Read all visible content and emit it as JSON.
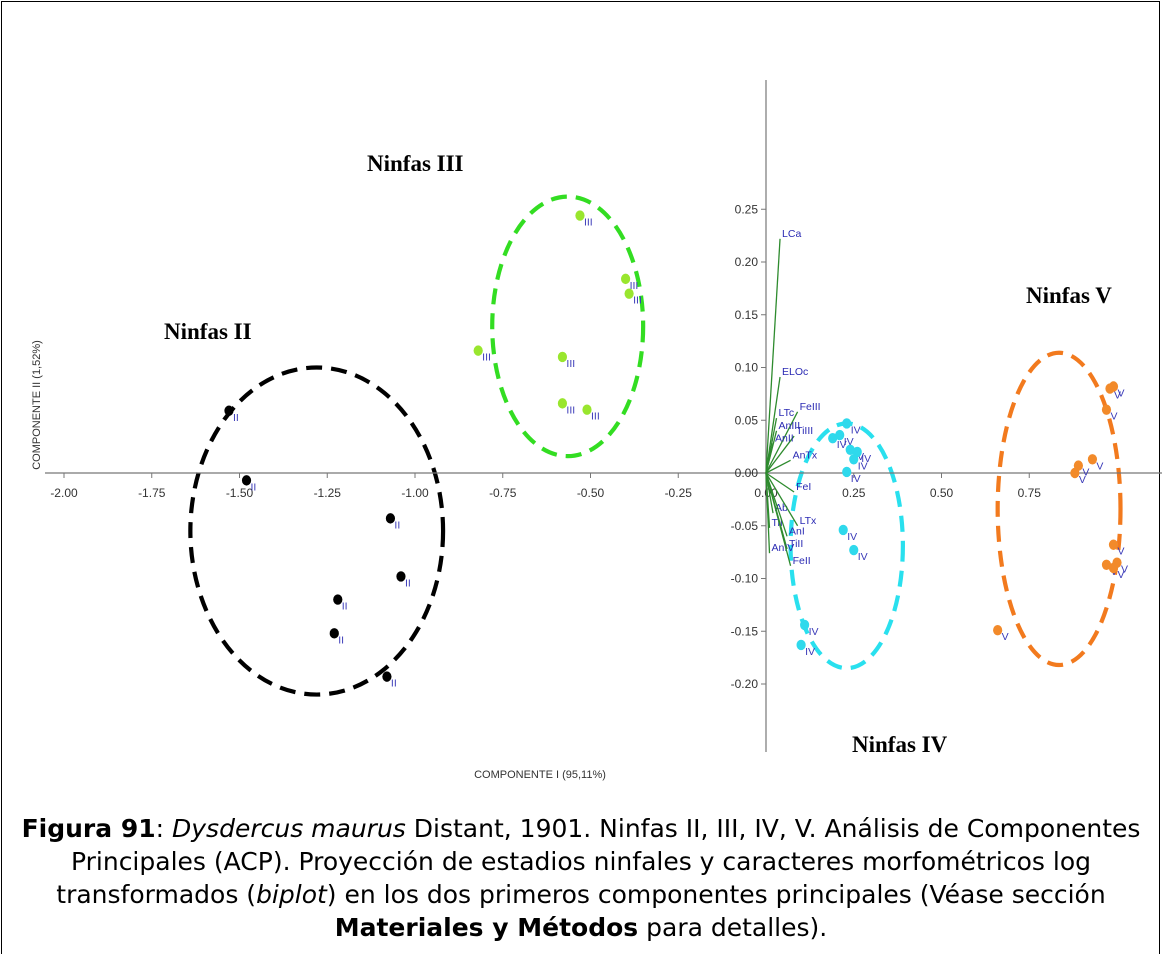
{
  "chart_data": {
    "type": "scatter",
    "xlabel": "COMPONENTE I (95,11%)",
    "ylabel": "COMPONENTE II (1,52%)",
    "xlim": [
      -2.0,
      1.0
    ],
    "ylim": [
      -0.2,
      0.25
    ],
    "x_ticks": [
      -2.0,
      -1.75,
      -1.5,
      -1.25,
      -1.0,
      -0.75,
      -0.5,
      -0.25,
      0.0,
      0.25,
      0.5,
      0.75
    ],
    "x_tick_labels": [
      "-2.00",
      "-1.75",
      "-1.50",
      "-1.25",
      "-1.00",
      "-0.75",
      "-0.50",
      "-0.25",
      "0.00",
      "0.25",
      "0.50",
      "0.75"
    ],
    "y_ticks": [
      0.25,
      0.2,
      0.15,
      0.1,
      0.05,
      0.0,
      -0.05,
      -0.1,
      -0.15,
      -0.2
    ],
    "y_tick_labels": [
      "0.25",
      "0.20",
      "0.15",
      "0.10",
      "0.05",
      "0.00",
      "-0.05",
      "-0.10",
      "-0.15",
      "-0.20"
    ],
    "grid": false,
    "series": [
      {
        "name": "Ninfas II",
        "point_label": "II",
        "color": "#000000",
        "x": [
          -1.53,
          -1.48,
          -1.07,
          -1.04,
          -1.22,
          -1.23,
          -1.08
        ],
        "y": [
          0.059,
          -0.007,
          -0.043,
          -0.098,
          -0.12,
          -0.152,
          -0.193
        ]
      },
      {
        "name": "Ninfas III",
        "point_label": "III",
        "color": "#99e62e",
        "x": [
          -0.53,
          -0.4,
          -0.39,
          -0.82,
          -0.58,
          -0.58,
          -0.51
        ],
        "y": [
          0.244,
          0.184,
          0.17,
          0.116,
          0.11,
          0.066,
          0.06
        ]
      },
      {
        "name": "Ninfas IV",
        "point_label": "IV",
        "color": "#2fd9ec",
        "x": [
          0.23,
          0.21,
          0.19,
          0.24,
          0.26,
          0.25,
          0.23,
          0.22,
          0.25,
          0.11,
          0.1
        ],
        "y": [
          0.047,
          0.036,
          0.033,
          0.022,
          0.02,
          0.013,
          0.001,
          -0.054,
          -0.073,
          -0.144,
          -0.163
        ]
      },
      {
        "name": "Ninfas V",
        "point_label": "V",
        "color": "#f28a2a",
        "x": [
          0.98,
          0.99,
          0.97,
          0.93,
          0.89,
          0.88,
          0.99,
          1.0,
          0.66,
          0.97,
          0.99
        ],
        "y": [
          0.08,
          0.082,
          0.06,
          0.013,
          0.007,
          0.0,
          -0.068,
          -0.085,
          -0.149,
          -0.087,
          -0.09
        ]
      }
    ],
    "vectors": {
      "color": "#2e8b2e",
      "label_color": "#2a2ab3",
      "items": [
        {
          "label": "LCa",
          "x": 0.04,
          "y": 0.222
        },
        {
          "label": "ELOc",
          "x": 0.04,
          "y": 0.091
        },
        {
          "label": "FeIII",
          "x": 0.09,
          "y": 0.058
        },
        {
          "label": "LTc",
          "x": 0.03,
          "y": 0.052
        },
        {
          "label": "AnIII",
          "x": 0.03,
          "y": 0.04
        },
        {
          "label": "TiIII",
          "x": 0.08,
          "y": 0.035
        },
        {
          "label": "AnII",
          "x": 0.02,
          "y": 0.028
        },
        {
          "label": "AnTx",
          "x": 0.07,
          "y": 0.012
        },
        {
          "label": "FeI",
          "x": 0.08,
          "y": -0.018
        },
        {
          "label": "Ab",
          "x": 0.02,
          "y": -0.038
        },
        {
          "label": "TiI",
          "x": 0.01,
          "y": -0.052
        },
        {
          "label": "LTx",
          "x": 0.09,
          "y": -0.05
        },
        {
          "label": "AnI",
          "x": 0.06,
          "y": -0.06
        },
        {
          "label": "TiII",
          "x": 0.06,
          "y": -0.072
        },
        {
          "label": "AnIV",
          "x": 0.01,
          "y": -0.076
        },
        {
          "label": "FeII",
          "x": 0.07,
          "y": -0.088
        }
      ]
    },
    "groups": [
      {
        "name": "Ninfas II",
        "color": "#000000",
        "cx": -1.28,
        "cy": -0.055,
        "rx": 0.36,
        "ry": 0.155
      },
      {
        "name": "Ninfas III",
        "color": "#33dd22",
        "cx": -0.565,
        "cy": 0.139,
        "rx": 0.215,
        "ry": 0.123
      },
      {
        "name": "Ninfas IV",
        "color": "#29e0ee",
        "cx": 0.23,
        "cy": -0.069,
        "rx": 0.16,
        "ry": 0.116
      },
      {
        "name": "Ninfas V",
        "color": "#f27a1e",
        "cx": 0.835,
        "cy": -0.034,
        "rx": 0.175,
        "ry": 0.148
      }
    ]
  },
  "labels": {
    "ninfas_ii": "Ninfas II",
    "ninfas_iii": "Ninfas III",
    "ninfas_iv": "Ninfas IV",
    "ninfas_v": "Ninfas V"
  },
  "caption": {
    "fig_label": "Figura 91",
    "sep1": ": ",
    "species": "Dysdercus maurus",
    "text1": " Distant, 1901. Ninfas II, III, IV, V. Análisis de Componentes Principales (ACP). Proyección de estadios ninfales y caracteres morfométricos log transformados (",
    "biplot": "biplot",
    "text2": ") en los dos primeros componentes principales (Véase sección ",
    "methods": "Materiales y Métodos",
    "text3": " para detalles)."
  }
}
